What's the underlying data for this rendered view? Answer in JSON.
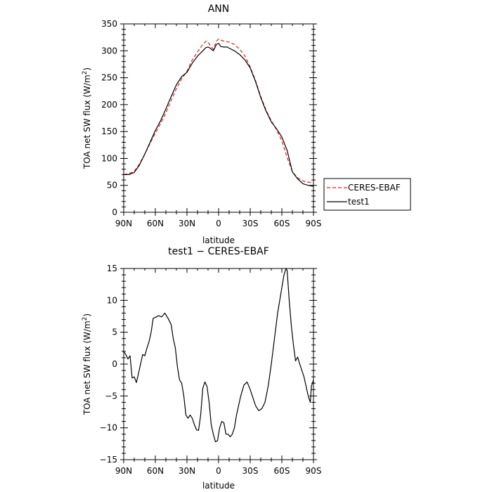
{
  "chart_data": [
    {
      "type": "line",
      "title": "ANN",
      "xlabel": "latitude",
      "ylabel": "TOA net SW flux (W/m",
      "ylabel_sup": "2",
      "ylabel_tail": ")",
      "xlim": [
        90,
        -90
      ],
      "ylim": [
        0,
        350
      ],
      "x_ticks": [
        90,
        60,
        30,
        0,
        -30,
        -60,
        -90
      ],
      "x_tick_labels": [
        "90N",
        "60N",
        "30N",
        "0",
        "30S",
        "60S",
        "90S"
      ],
      "y_ticks": [
        0,
        50,
        100,
        150,
        200,
        250,
        300,
        350
      ],
      "y_tick_labels": [
        "0",
        "50",
        "100",
        "150",
        "200",
        "250",
        "300",
        "350"
      ],
      "legend": {
        "position": "outside-right-bottom",
        "entries": [
          "CERES-EBAF",
          "test1"
        ]
      },
      "series": [
        {
          "name": "CERES-EBAF",
          "color": "#e8191b",
          "dash": "dashed",
          "x": [
            90,
            85,
            80,
            75,
            70,
            65,
            60,
            55,
            50,
            45,
            40,
            35,
            30,
            25,
            20,
            15,
            12,
            10,
            8,
            5,
            2,
            0,
            -2,
            -5,
            -8,
            -10,
            -15,
            -20,
            -25,
            -30,
            -35,
            -40,
            -45,
            -50,
            -55,
            -60,
            -65,
            -70,
            -75,
            -80,
            -85,
            -90
          ],
          "y": [
            70,
            72,
            76,
            90,
            108,
            128,
            147,
            165,
            185,
            208,
            230,
            248,
            262,
            283,
            298,
            312,
            318,
            316,
            310,
            303,
            318,
            322,
            320,
            318,
            317,
            316,
            312,
            303,
            290,
            270,
            245,
            215,
            190,
            170,
            153,
            133,
            102,
            75,
            64,
            58,
            56,
            55
          ]
        },
        {
          "name": "test1",
          "color": "#000000",
          "dash": "solid",
          "x": [
            90,
            85,
            80,
            75,
            70,
            65,
            60,
            55,
            50,
            45,
            40,
            35,
            30,
            25,
            20,
            15,
            12,
            10,
            8,
            5,
            2,
            0,
            -2,
            -5,
            -8,
            -10,
            -15,
            -20,
            -25,
            -30,
            -35,
            -40,
            -45,
            -50,
            -55,
            -60,
            -65,
            -70,
            -75,
            -80,
            -85,
            -90
          ],
          "y": [
            70,
            70,
            74,
            88,
            108,
            130,
            152,
            170,
            192,
            215,
            237,
            252,
            260,
            277,
            290,
            300,
            306,
            307,
            305,
            300,
            312,
            314,
            308,
            307,
            307,
            305,
            300,
            293,
            283,
            268,
            243,
            213,
            188,
            168,
            155,
            140,
            115,
            75,
            62,
            53,
            50,
            48
          ]
        }
      ]
    },
    {
      "type": "line",
      "title": "test1 − CERES-EBAF",
      "xlabel": "latitude",
      "ylabel": "TOA net SW flux (W/m",
      "ylabel_sup": "2",
      "ylabel_tail": ")",
      "xlim": [
        90,
        -90
      ],
      "ylim": [
        -15,
        15
      ],
      "x_ticks": [
        90,
        60,
        30,
        0,
        -30,
        -60,
        -90
      ],
      "x_tick_labels": [
        "90N",
        "60N",
        "30N",
        "0",
        "30S",
        "60S",
        "90S"
      ],
      "y_ticks": [
        -15,
        -10,
        -5,
        0,
        5,
        10,
        15
      ],
      "y_tick_labels": [
        "−15",
        "−10",
        "−5",
        "0",
        "5",
        "10",
        "15"
      ],
      "series": [
        {
          "color": "#000000",
          "dash": "solid",
          "x": [
            90,
            88,
            86,
            84,
            82,
            80,
            78,
            76,
            74,
            72,
            70,
            68,
            66,
            64,
            62,
            60,
            57,
            54,
            51,
            48,
            45,
            43,
            41,
            39,
            37,
            35,
            33,
            31,
            29,
            27,
            25,
            23,
            21,
            19,
            17,
            15,
            13,
            11,
            9,
            7,
            5,
            3,
            1,
            -1,
            -3,
            -5,
            -7,
            -9,
            -11,
            -13,
            -15,
            -17,
            -19,
            -21,
            -24,
            -27,
            -30,
            -32,
            -35,
            -38,
            -41,
            -44,
            -47,
            -50,
            -53,
            -56,
            -59,
            -62,
            -64,
            -65,
            -67,
            -69,
            -71,
            -73,
            -75,
            -77,
            -79,
            -81,
            -83,
            -85,
            -87,
            -88,
            -90
          ],
          "y": [
            2,
            1.5,
            0.8,
            1.3,
            -2.2,
            -2,
            -2.9,
            -1.5,
            0,
            1.5,
            1.3,
            2.5,
            3.5,
            5,
            7.2,
            7.3,
            7.6,
            7.4,
            8,
            7.2,
            6.2,
            4,
            2.5,
            -0.5,
            -2.5,
            -3,
            -5,
            -8,
            -8.5,
            -8,
            -8.5,
            -9.5,
            -10.3,
            -10.4,
            -8,
            -3.8,
            -2.8,
            -3.5,
            -6,
            -9.5,
            -11,
            -12.2,
            -12,
            -10,
            -9,
            -9.2,
            -11,
            -11,
            -11.4,
            -11,
            -10,
            -8,
            -6.5,
            -5,
            -3.3,
            -2.8,
            -4,
            -5,
            -6.5,
            -7.3,
            -7,
            -6,
            -3.5,
            0,
            4,
            8,
            11,
            14,
            15,
            14.7,
            10,
            6,
            3,
            0.5,
            1.1,
            0,
            -1,
            -2,
            -3.5,
            -5,
            -6,
            -3.5,
            -2.5
          ]
        }
      ]
    }
  ]
}
